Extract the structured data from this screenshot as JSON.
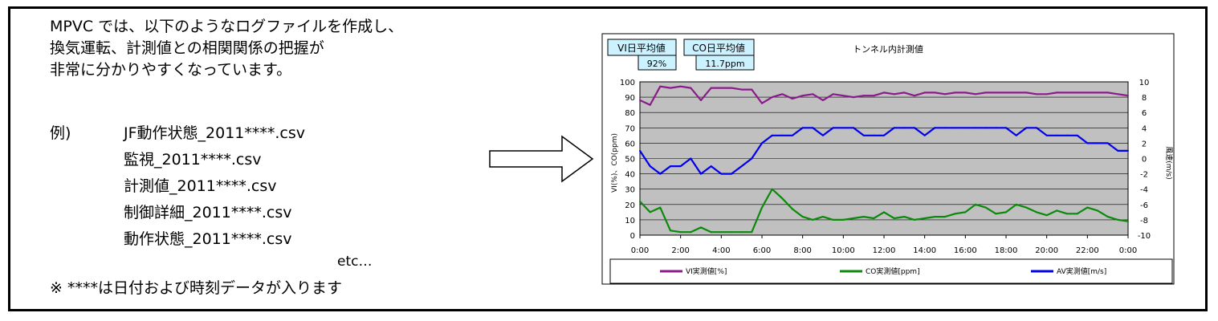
{
  "left_text": {
    "intro_lines": [
      "MPVC では、以下のようなログファイルを作成し、",
      "換気運転、計測値との相関関係の把握が",
      "非常に分かりやすくなっています。"
    ],
    "example_label": "例)",
    "files": [
      "JF動作状態_2011****.csv",
      "監視_2011****.csv",
      "計測値_2011****.csv",
      "制御詳細_2011****.csv",
      "動作状態_2011****.csv"
    ],
    "etc": "etc…",
    "note": "※ ****は日付および時刻データが入ります"
  },
  "summary_boxes": {
    "vi_label": "VI日平均値",
    "vi_value": "92%",
    "co_label": "CO日平均値",
    "co_value": "11.7ppm"
  },
  "chart_data": {
    "type": "line",
    "title": "トンネル内計測値",
    "ylabel": "VI(%)、CO(ppm)",
    "y2label": "風速(m/s)",
    "ylim": [
      0,
      100
    ],
    "y2lim": [
      -10,
      10
    ],
    "y_ticks": [
      "0",
      "10",
      "20",
      "30",
      "40",
      "50",
      "60",
      "70",
      "80",
      "90",
      "100"
    ],
    "y2_ticks": [
      "-10",
      "-8",
      "-6",
      "-4",
      "-2",
      "0",
      "2",
      "4",
      "6",
      "8",
      "10"
    ],
    "x_ticks": [
      "0:00",
      "2:00",
      "4:00",
      "6:00",
      "8:00",
      "10:00",
      "12:00",
      "14:00",
      "16:00",
      "18:00",
      "20:00",
      "22:00",
      "0:00"
    ],
    "grid": true,
    "legend_placement": "bottom",
    "plot_background": "#c0c0c0",
    "x": [
      0,
      0.5,
      1,
      1.5,
      2,
      2.5,
      3,
      3.5,
      4,
      4.5,
      5,
      5.5,
      6,
      6.5,
      7,
      7.5,
      8,
      8.5,
      9,
      9.5,
      10,
      10.5,
      11,
      11.5,
      12,
      12.5,
      13,
      13.5,
      14,
      14.5,
      15,
      15.5,
      16,
      16.5,
      17,
      17.5,
      18,
      18.5,
      19,
      19.5,
      20,
      20.5,
      21,
      21.5,
      22,
      22.5,
      23,
      23.5,
      24
    ],
    "series": [
      {
        "name": "VI実測値[%]",
        "axis": "left",
        "color": "#8b1a8b",
        "values": [
          88,
          85,
          97,
          96,
          97,
          96,
          88,
          96,
          96,
          96,
          95,
          95,
          86,
          90,
          92,
          89,
          91,
          92,
          88,
          92,
          91,
          90,
          91,
          91,
          93,
          92,
          93,
          91,
          93,
          93,
          92,
          93,
          93,
          92,
          93,
          93,
          93,
          93,
          93,
          92,
          92,
          93,
          93,
          93,
          93,
          93,
          93,
          92,
          91
        ]
      },
      {
        "name": "CO実測値[ppm]",
        "axis": "left",
        "color": "#0a8a0a",
        "values": [
          22,
          15,
          18,
          3,
          2,
          2,
          5,
          2,
          2,
          2,
          2,
          2,
          18,
          30,
          24,
          17,
          12,
          10,
          12,
          10,
          10,
          11,
          12,
          11,
          15,
          11,
          12,
          10,
          11,
          12,
          12,
          14,
          15,
          20,
          18,
          14,
          15,
          20,
          18,
          15,
          13,
          16,
          14,
          14,
          18,
          16,
          12,
          10,
          9
        ]
      },
      {
        "name": "AV実測値[m/s]",
        "axis": "right",
        "color": "#0000ee",
        "values": [
          1,
          -1,
          -2,
          -1,
          -1,
          0,
          -2,
          -1,
          -2,
          -2,
          -1,
          0,
          2,
          3,
          3,
          3,
          4,
          4,
          3,
          4,
          4,
          4,
          3,
          3,
          3,
          4,
          4,
          4,
          3,
          4,
          4,
          4,
          4,
          4,
          4,
          4,
          4,
          3,
          4,
          4,
          3,
          3,
          3,
          3,
          2,
          2,
          2,
          1,
          1
        ]
      }
    ]
  }
}
